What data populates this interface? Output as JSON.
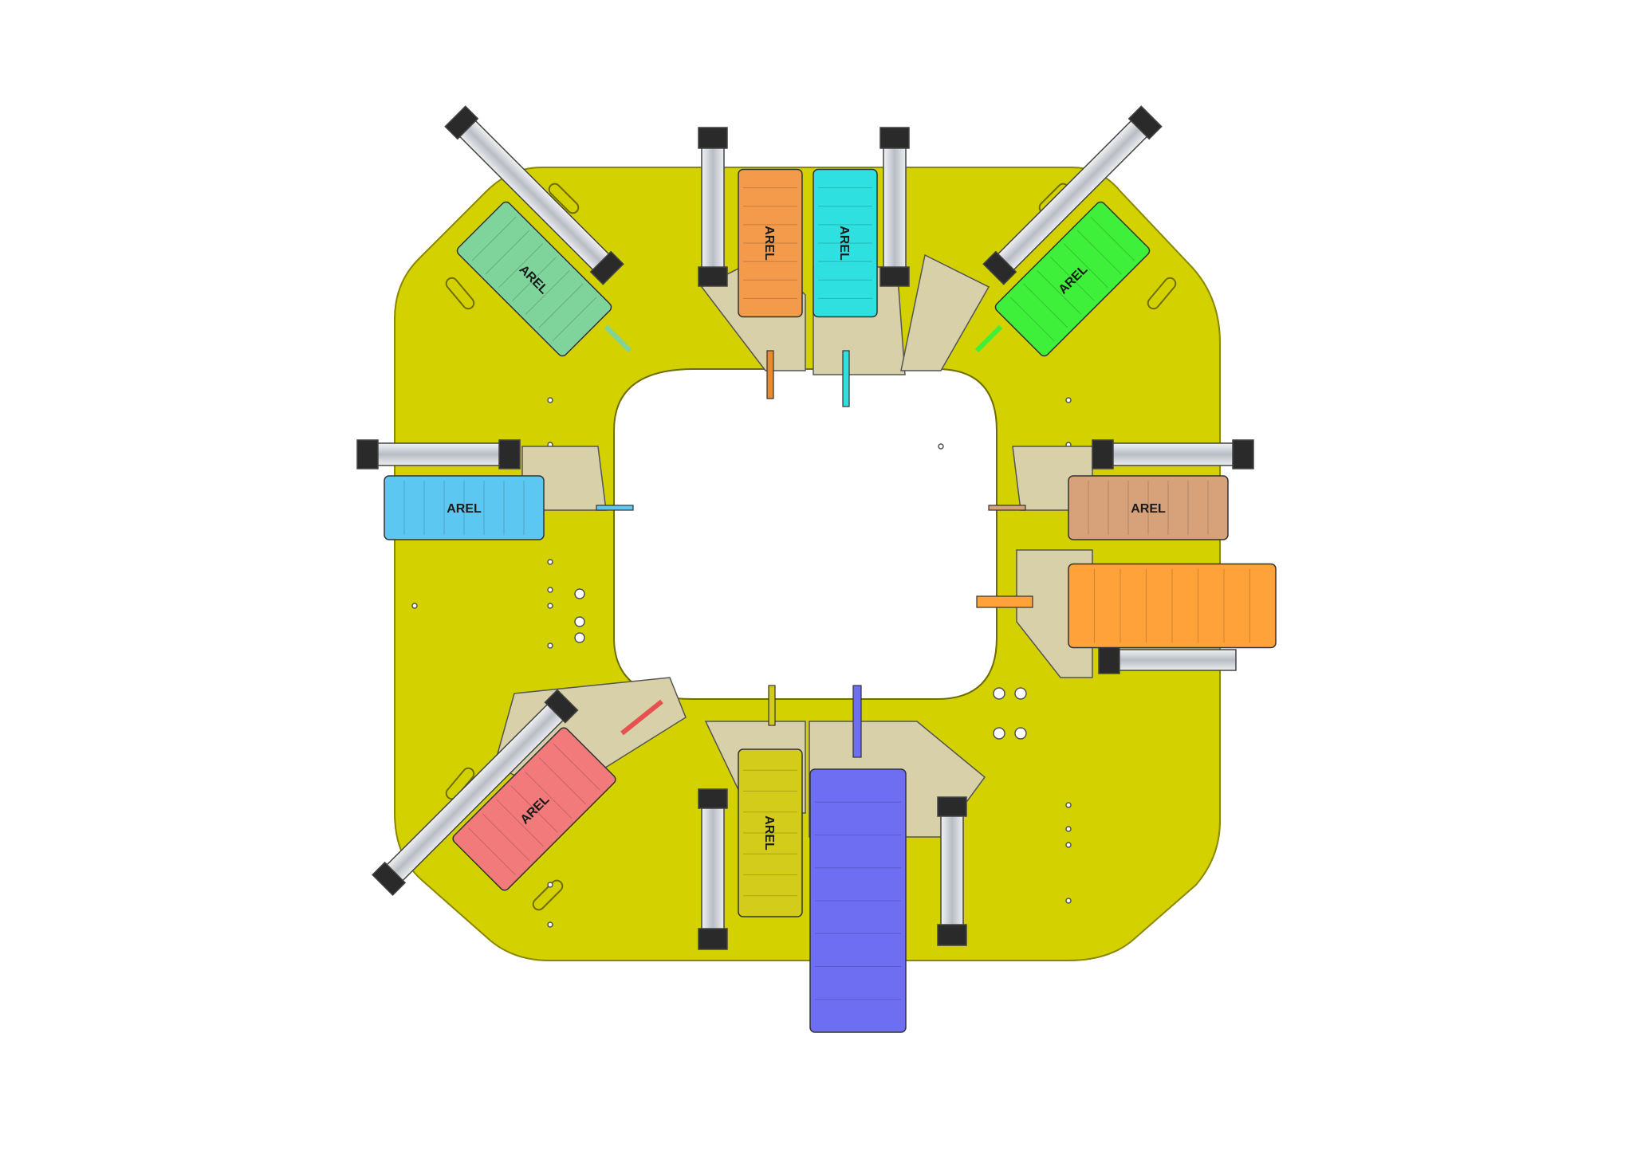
{
  "brand_label": "AREL",
  "colors": {
    "plate": "#d3d100",
    "plate_edge": "#8a8800",
    "bracket": "#d8d0a8",
    "cylinder": "#c9ccd2",
    "cap": "#2a2a2a"
  },
  "spindles": [
    {
      "name": "top-left-green",
      "color": "#7fd49b",
      "label": "AREL"
    },
    {
      "name": "top-orange",
      "color": "#f39a4b",
      "label": "AREL"
    },
    {
      "name": "top-cyan",
      "color": "#2ee0e0",
      "label": "AREL"
    },
    {
      "name": "top-right-green",
      "color": "#3ef03a",
      "label": "AREL"
    },
    {
      "name": "left-blue",
      "color": "#5cc8f2",
      "label": "AREL"
    },
    {
      "name": "right-tan",
      "color": "#d7a27a",
      "label": "AREL"
    },
    {
      "name": "right-orange",
      "color": "#ffa23a",
      "label": ""
    },
    {
      "name": "bottom-left-red",
      "color": "#f27a7a",
      "label": "AREL"
    },
    {
      "name": "bottom-olive",
      "color": "#d3cc1a",
      "label": "AREL"
    },
    {
      "name": "bottom-blue",
      "color": "#6e6ef2",
      "label": ""
    }
  ]
}
